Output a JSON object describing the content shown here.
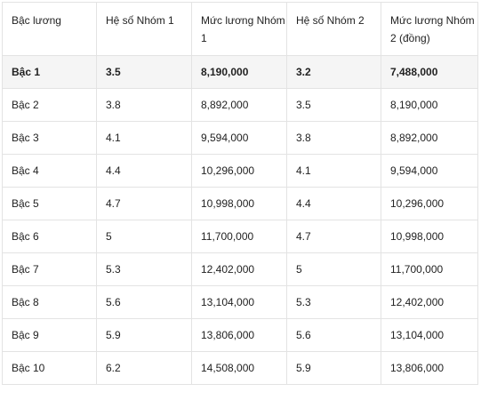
{
  "table": {
    "headers": [
      "Bậc lương",
      "Hệ số Nhóm 1",
      "Mức lương Nhóm 1",
      "Hệ số Nhóm 2",
      "Mức lương Nhóm 2 (đồng)"
    ],
    "rows": [
      [
        "Bậc 1",
        "3.5",
        "8,190,000",
        "3.2",
        "7,488,000"
      ],
      [
        "Bậc 2",
        "3.8",
        "8,892,000",
        "3.5",
        "8,190,000"
      ],
      [
        "Bậc 3",
        "4.1",
        "9,594,000",
        "3.8",
        "8,892,000"
      ],
      [
        "Bậc 4",
        "4.4",
        "10,296,000",
        "4.1",
        "9,594,000"
      ],
      [
        "Bậc 5",
        "4.7",
        "10,998,000",
        "4.4",
        "10,296,000"
      ],
      [
        "Bậc 6",
        "5",
        "11,700,000",
        "4.7",
        "10,998,000"
      ],
      [
        "Bậc 7",
        "5.3",
        "12,402,000",
        "5",
        "11,700,000"
      ],
      [
        "Bậc 8",
        "5.6",
        "13,104,000",
        "5.3",
        "12,402,000"
      ],
      [
        "Bậc 9",
        "5.9",
        "13,806,000",
        "5.6",
        "13,104,000"
      ],
      [
        "Bậc 10",
        "6.2",
        "14,508,000",
        "5.9",
        "13,806,000"
      ]
    ]
  },
  "colors": {
    "border": "#e3e3e3",
    "first_row_background": "#f5f5f5",
    "text": "#222222"
  }
}
